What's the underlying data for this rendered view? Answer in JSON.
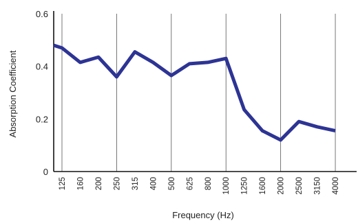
{
  "chart_data": {
    "type": "line",
    "title": "",
    "xlabel": "Frequency (Hz)",
    "ylabel": "Absorption Coefficient",
    "ylim": [
      0,
      0.6
    ],
    "yticks": [
      "0",
      "0.2",
      "0.4",
      "0.6"
    ],
    "ytick_values": [
      0,
      0.2,
      0.4,
      0.6
    ],
    "categories": [
      "125",
      "160",
      "200",
      "250",
      "315",
      "400",
      "500",
      "625",
      "800",
      "1000",
      "1250",
      "1600",
      "2000",
      "2500",
      "3150",
      "4000"
    ],
    "grid_categories": [
      "125",
      "250",
      "500",
      "1000",
      "2000",
      "4000"
    ],
    "grid": true,
    "legend": "none",
    "series": [
      {
        "points": [
          {
            "x": "125",
            "y": 0.47
          },
          {
            "x": "160",
            "y": 0.415
          },
          {
            "x": "200",
            "y": 0.435
          },
          {
            "x": "250",
            "y": 0.36
          },
          {
            "x": "315",
            "y": 0.455
          },
          {
            "x": "400",
            "y": 0.415
          },
          {
            "x": "500",
            "y": 0.365
          },
          {
            "x": "625",
            "y": 0.41
          },
          {
            "x": "800",
            "y": 0.415
          },
          {
            "x": "1000",
            "y": 0.43
          },
          {
            "x": "1250",
            "y": 0.235
          },
          {
            "x": "1600",
            "y": 0.155
          },
          {
            "x": "2000",
            "y": 0.12
          },
          {
            "x": "2500",
            "y": 0.19
          },
          {
            "x": "3150",
            "y": 0.17
          },
          {
            "x": "4000",
            "y": 0.155
          }
        ]
      }
    ],
    "colors": {
      "line": "#2d3494",
      "axis": "#111111",
      "grid": "#555555"
    }
  }
}
